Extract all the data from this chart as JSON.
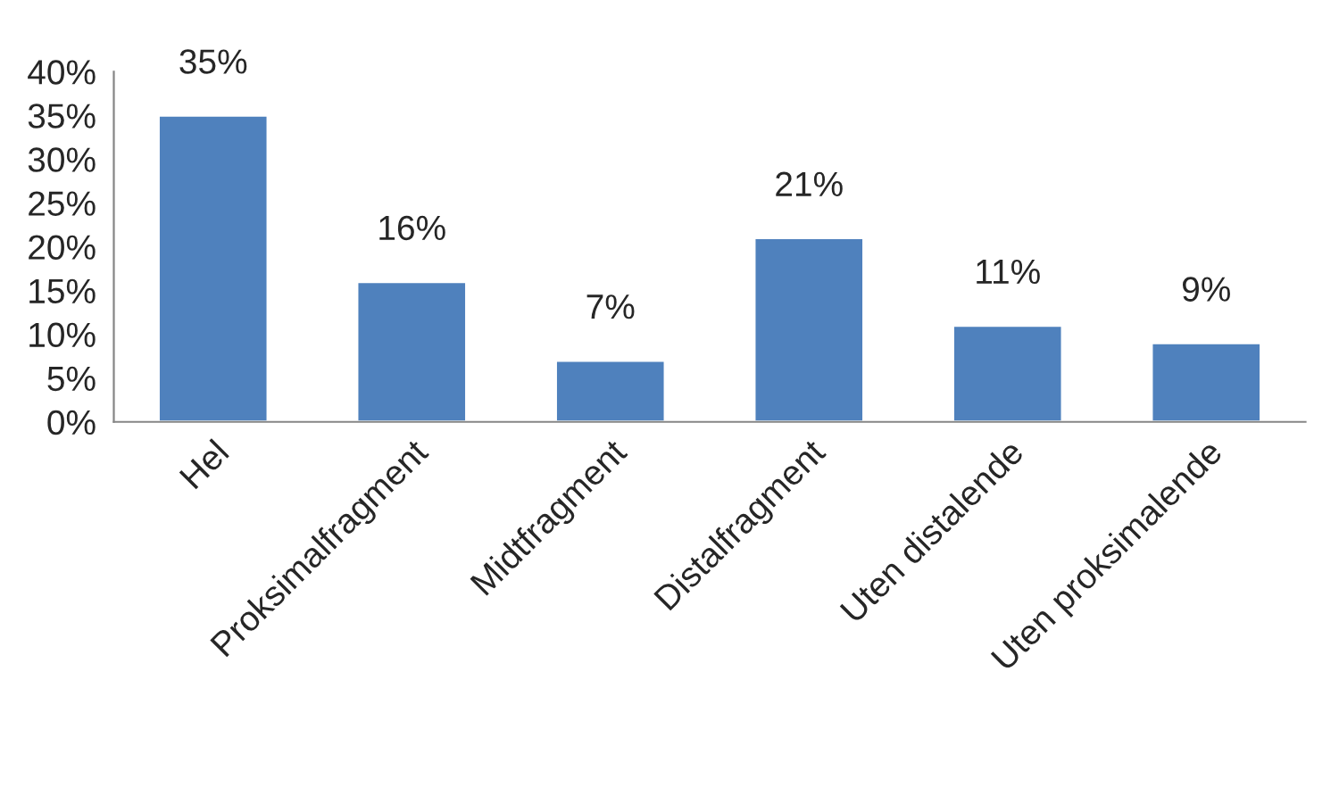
{
  "chart_data": {
    "type": "bar",
    "categories": [
      "Hel",
      "Proksimalfragment",
      "Midtfragment",
      "Distalfragment",
      "Uten distalende",
      "Uten proksimalende"
    ],
    "values": [
      35,
      16,
      7,
      21,
      11,
      9
    ],
    "value_labels": [
      "35%",
      "16%",
      "7%",
      "21%",
      "11%",
      "9%"
    ],
    "color": "#4f81bd",
    "ylim": [
      0,
      40
    ],
    "yticks": [
      {
        "value": 0,
        "label": "0%"
      },
      {
        "value": 5,
        "label": "5%"
      },
      {
        "value": 10,
        "label": "10%"
      },
      {
        "value": 15,
        "label": "15%"
      },
      {
        "value": 20,
        "label": "20%"
      },
      {
        "value": 25,
        "label": "25%"
      },
      {
        "value": 30,
        "label": "30%"
      },
      {
        "value": 35,
        "label": "35%"
      },
      {
        "value": 40,
        "label": "40%"
      }
    ],
    "grid": false,
    "legend": false
  }
}
